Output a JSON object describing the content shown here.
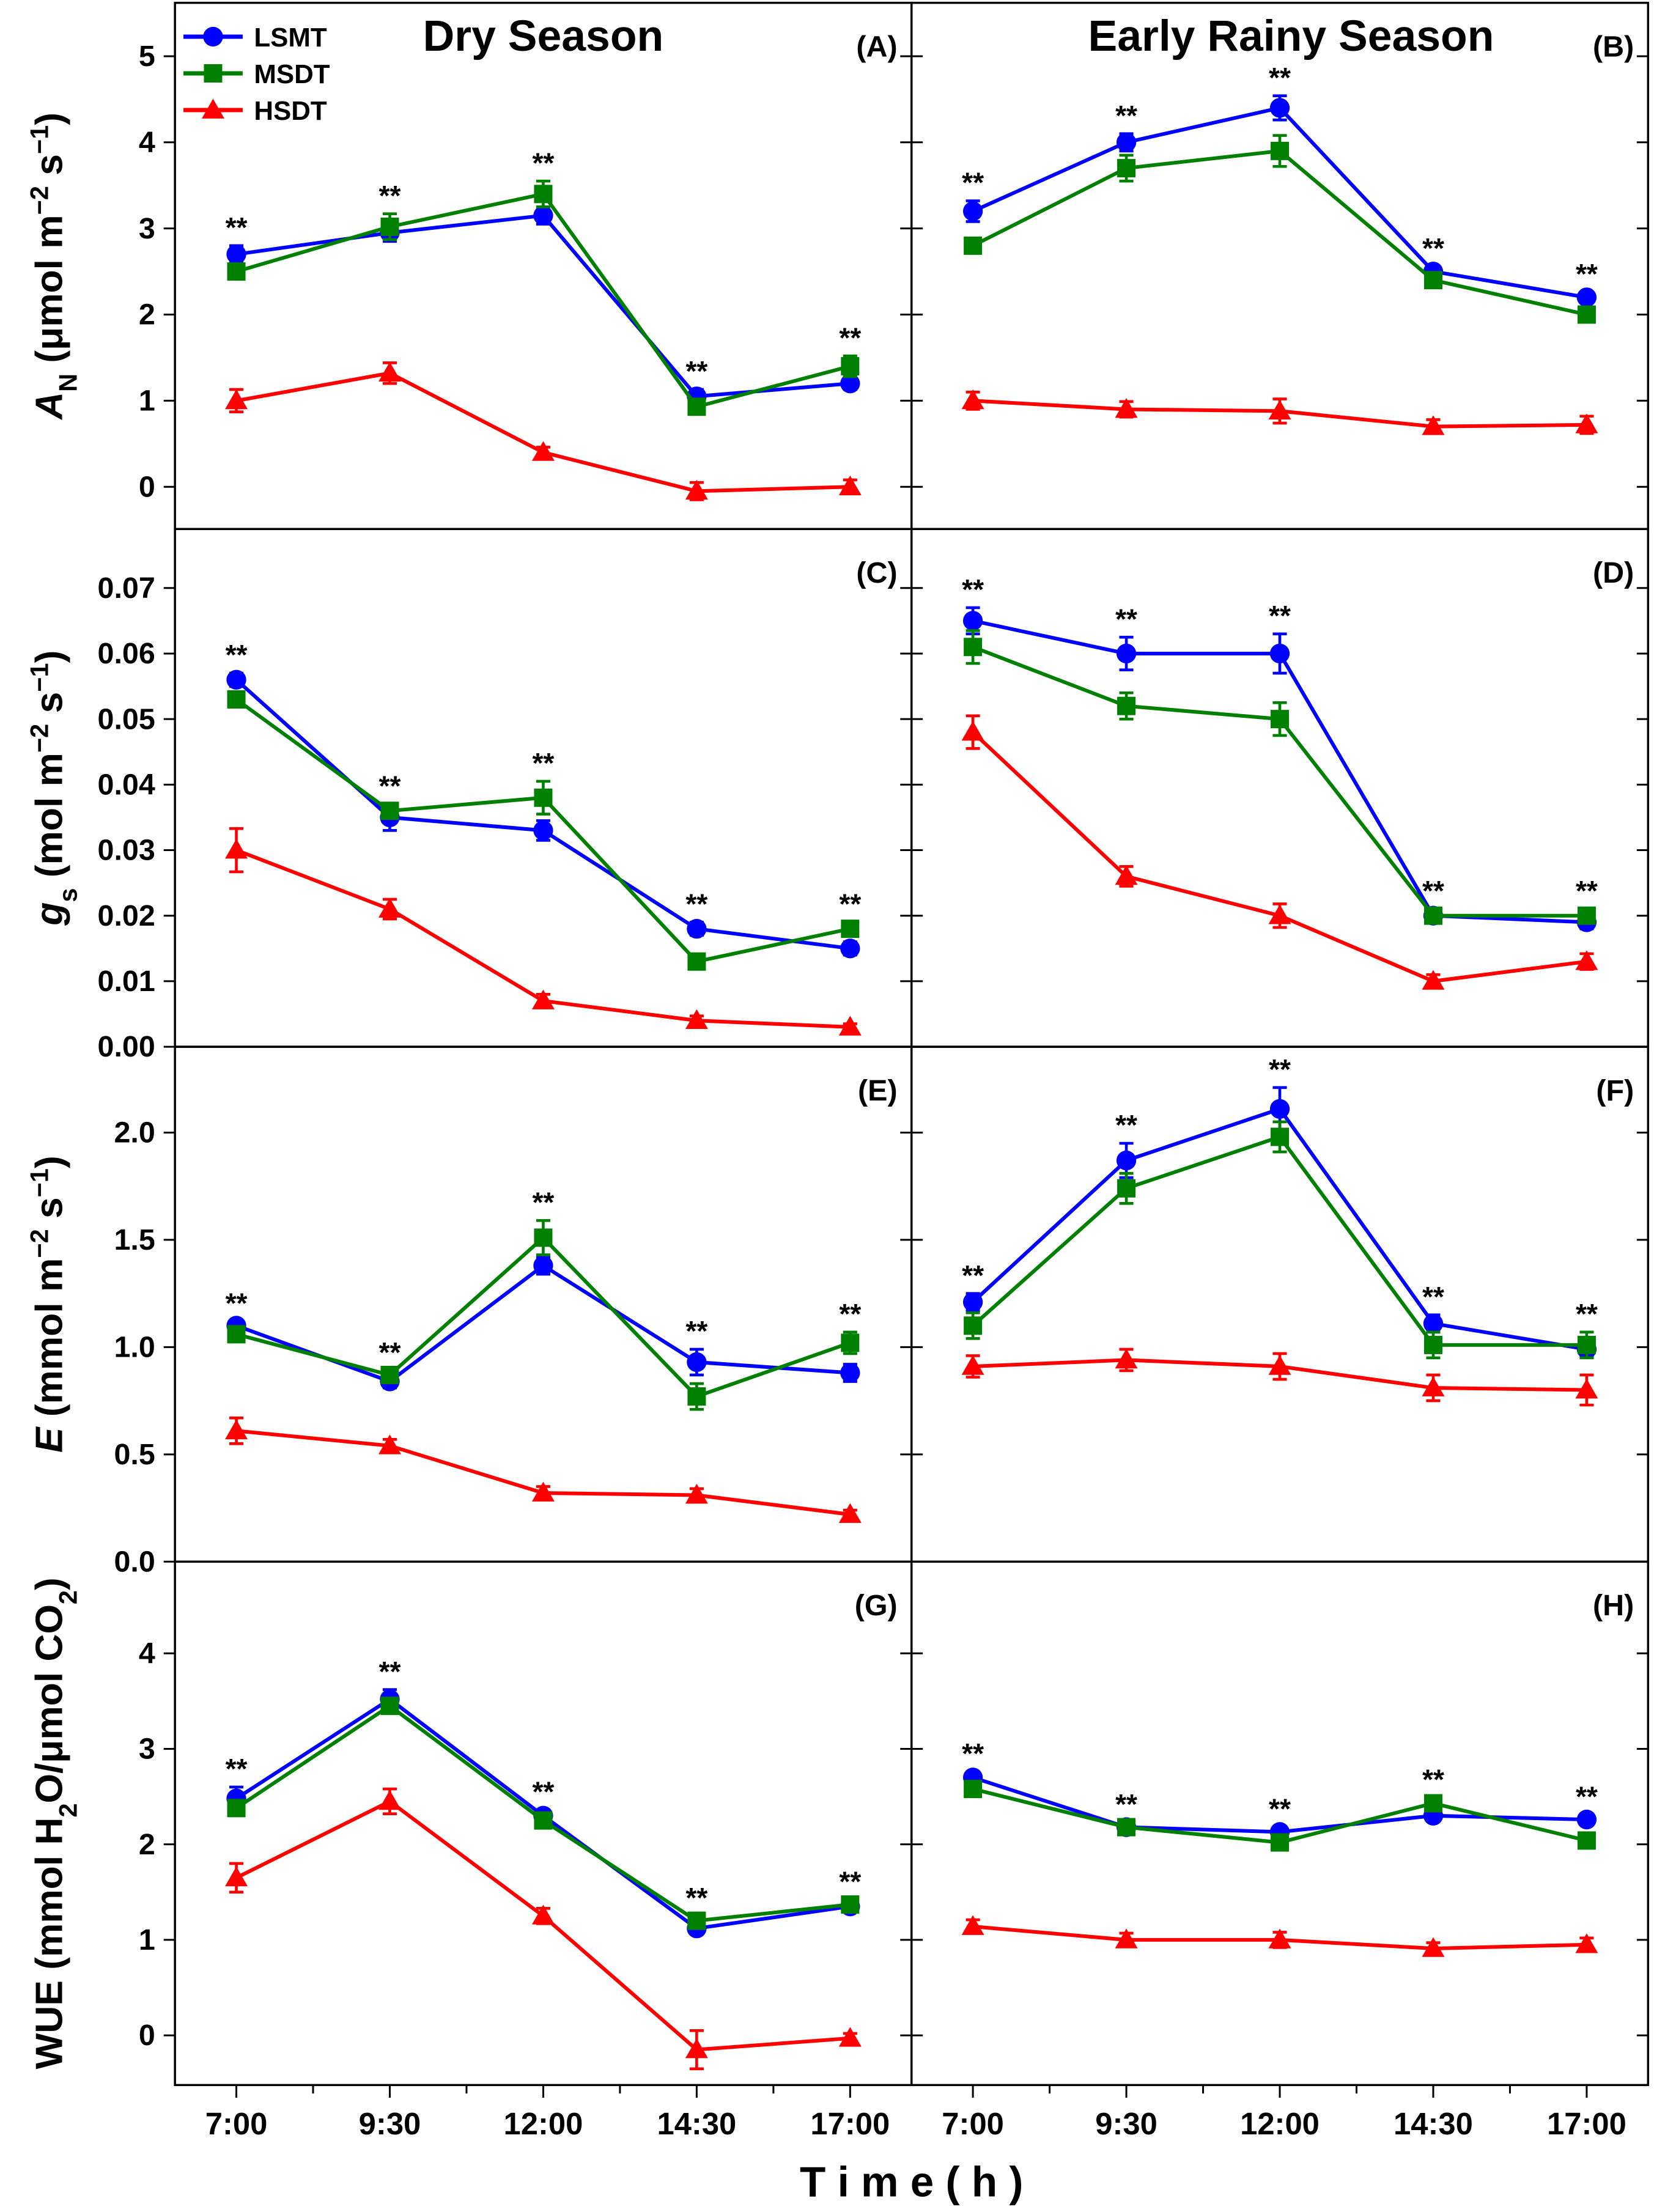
{
  "chart_data": {
    "type": "line",
    "xlabel": "T i m e  ( h )",
    "categories": [
      "7:00",
      "9:30",
      "12:00",
      "14:30",
      "17:00"
    ],
    "xlim": [
      -0.4,
      4.4
    ],
    "column_titles": [
      "Dry Season",
      "Early Rainy Season"
    ],
    "legend": {
      "placement": "top-left",
      "entries": [
        {
          "name": "LSMT",
          "color": "#0000ff",
          "marker": "circle"
        },
        {
          "name": "MSDT",
          "color": "#008000",
          "marker": "square"
        },
        {
          "name": "HSDT",
          "color": "#ff0000",
          "marker": "triangle"
        }
      ]
    },
    "significance_label": "**",
    "rows": [
      {
        "ylabel_parts": [
          {
            "t": "A",
            "s": "italic"
          },
          {
            "t": "N",
            "s": "sub"
          },
          {
            "t": " (μmol m",
            "s": "normal"
          },
          {
            "t": "−2",
            "s": "sup"
          },
          {
            "t": " s",
            "s": "normal"
          },
          {
            "t": "−1",
            "s": "sup"
          },
          {
            "t": ")",
            "s": "normal"
          }
        ],
        "ylim": [
          -0.49,
          5.62
        ],
        "yticks": [
          "0",
          "1",
          "2",
          "3",
          "4",
          "5"
        ]
      },
      {
        "ylabel_parts": [
          {
            "t": "g",
            "s": "italic"
          },
          {
            "t": "s",
            "s": "sub"
          },
          {
            "t": " (mol m",
            "s": "normal"
          },
          {
            "t": "−2",
            "s": "sup"
          },
          {
            "t": " s",
            "s": "normal"
          },
          {
            "t": "−1",
            "s": "sup"
          },
          {
            "t": ")",
            "s": "normal"
          }
        ],
        "ylim": [
          0,
          0.079
        ],
        "yticks": [
          "0.00",
          "0.01",
          "0.02",
          "0.03",
          "0.04",
          "0.05",
          "0.06",
          "0.07"
        ]
      },
      {
        "ylabel_parts": [
          {
            "t": "E",
            "s": "italic"
          },
          {
            "t": " (mmol m",
            "s": "normal"
          },
          {
            "t": "−2",
            "s": "sup"
          },
          {
            "t": " s",
            "s": "normal"
          },
          {
            "t": "−1",
            "s": "sup"
          },
          {
            "t": ")",
            "s": "normal"
          }
        ],
        "ylim": [
          0,
          2.4
        ],
        "yticks": [
          "0.0",
          "0.5",
          "1.0",
          "1.5",
          "2.0"
        ]
      },
      {
        "ylabel_parts": [
          {
            "t": "WUE (mmol H",
            "s": "normal"
          },
          {
            "t": "2",
            "s": "sub"
          },
          {
            "t": "O/μmol CO",
            "s": "normal"
          },
          {
            "t": "2",
            "s": "sub"
          },
          {
            "t": ")",
            "s": "normal"
          }
        ],
        "ylim": [
          -0.52,
          4.96
        ],
        "yticks": [
          "0",
          "1",
          "2",
          "3",
          "4"
        ]
      }
    ],
    "panels": [
      {
        "label": "(A)",
        "row": 0,
        "col": 0,
        "sig": [
          1,
          1,
          1,
          1,
          1
        ],
        "series": [
          {
            "name": "LSMT",
            "values": [
              2.7,
              2.95,
              3.15,
              1.05,
              1.2
            ],
            "err": [
              0.1,
              0.1,
              0.1,
              0.08,
              0.07
            ]
          },
          {
            "name": "MSDT",
            "values": [
              2.5,
              3.02,
              3.4,
              0.93,
              1.4
            ],
            "err": [
              0.08,
              0.15,
              0.15,
              0.08,
              0.12
            ]
          },
          {
            "name": "HSDT",
            "values": [
              1.0,
              1.32,
              0.4,
              -0.05,
              0.0
            ],
            "err": [
              0.13,
              0.12,
              0.06,
              0.1,
              0.08
            ]
          }
        ]
      },
      {
        "label": "(B)",
        "row": 0,
        "col": 1,
        "sig": [
          1,
          1,
          1,
          1,
          1
        ],
        "series": [
          {
            "name": "LSMT",
            "values": [
              3.2,
              4.0,
              4.4,
              2.5,
              2.2
            ],
            "err": [
              0.12,
              0.1,
              0.14,
              0.06,
              0.06
            ]
          },
          {
            "name": "MSDT",
            "values": [
              2.8,
              3.7,
              3.9,
              2.4,
              2.0
            ],
            "err": [
              0.06,
              0.15,
              0.18,
              0.08,
              0.06
            ]
          },
          {
            "name": "HSDT",
            "values": [
              1.0,
              0.9,
              0.88,
              0.7,
              0.72
            ],
            "err": [
              0.1,
              0.09,
              0.14,
              0.08,
              0.1
            ]
          }
        ]
      },
      {
        "label": "(C)",
        "row": 1,
        "col": 0,
        "sig": [
          1,
          1,
          1,
          1,
          1
        ],
        "series": [
          {
            "name": "LSMT",
            "values": [
              0.056,
              0.035,
              0.033,
              0.018,
              0.015
            ],
            "err": [
              0.001,
              0.002,
              0.0015,
              0.001,
              0.001
            ]
          },
          {
            "name": "MSDT",
            "values": [
              0.053,
              0.036,
              0.038,
              0.013,
              0.018
            ],
            "err": [
              0.001,
              0.001,
              0.0025,
              0.001,
              0.001
            ]
          },
          {
            "name": "HSDT",
            "values": [
              0.03,
              0.021,
              0.007,
              0.004,
              0.003
            ],
            "err": [
              0.0033,
              0.0015,
              0.001,
              0.0007,
              0.0005
            ]
          }
        ]
      },
      {
        "label": "(D)",
        "row": 1,
        "col": 1,
        "sig": [
          1,
          1,
          1,
          1,
          1
        ],
        "series": [
          {
            "name": "LSMT",
            "values": [
              0.065,
              0.06,
              0.06,
              0.02,
              0.019
            ],
            "err": [
              0.002,
              0.0025,
              0.003,
              0.001,
              0.001
            ]
          },
          {
            "name": "MSDT",
            "values": [
              0.061,
              0.052,
              0.05,
              0.02,
              0.02
            ],
            "err": [
              0.0025,
              0.002,
              0.0025,
              0.001,
              0.001
            ]
          },
          {
            "name": "HSDT",
            "values": [
              0.048,
              0.026,
              0.02,
              0.01,
              0.013
            ],
            "err": [
              0.0025,
              0.0015,
              0.0018,
              0.001,
              0.0012
            ]
          }
        ]
      },
      {
        "label": "(E)",
        "row": 2,
        "col": 0,
        "sig": [
          1,
          1,
          1,
          1,
          1
        ],
        "series": [
          {
            "name": "LSMT",
            "values": [
              1.1,
              0.84,
              1.38,
              0.93,
              0.88
            ],
            "err": [
              0.02,
              0.03,
              0.04,
              0.06,
              0.04
            ]
          },
          {
            "name": "MSDT",
            "values": [
              1.06,
              0.87,
              1.51,
              0.77,
              1.02
            ],
            "err": [
              0.02,
              0.02,
              0.08,
              0.06,
              0.05
            ]
          },
          {
            "name": "HSDT",
            "values": [
              0.61,
              0.54,
              0.32,
              0.31,
              0.22
            ],
            "err": [
              0.06,
              0.03,
              0.03,
              0.03,
              0.02
            ]
          }
        ]
      },
      {
        "label": "(F)",
        "row": 2,
        "col": 1,
        "sig": [
          1,
          1,
          1,
          1,
          1
        ],
        "series": [
          {
            "name": "LSMT",
            "values": [
              1.21,
              1.87,
              2.11,
              1.11,
              0.99
            ],
            "err": [
              0.04,
              0.08,
              0.1,
              0.04,
              0.03
            ]
          },
          {
            "name": "MSDT",
            "values": [
              1.1,
              1.74,
              1.98,
              1.01,
              1.01
            ],
            "err": [
              0.06,
              0.07,
              0.07,
              0.06,
              0.06
            ]
          },
          {
            "name": "HSDT",
            "values": [
              0.91,
              0.94,
              0.91,
              0.81,
              0.8
            ],
            "err": [
              0.05,
              0.05,
              0.06,
              0.06,
              0.07
            ]
          }
        ]
      },
      {
        "label": "(G)",
        "row": 3,
        "col": 0,
        "sig": [
          1,
          1,
          1,
          1,
          1
        ],
        "series": [
          {
            "name": "LSMT",
            "values": [
              2.48,
              3.52,
              2.3,
              1.12,
              1.35
            ],
            "err": [
              0.12,
              0.1,
              0.06,
              0.06,
              0.06
            ]
          },
          {
            "name": "MSDT",
            "values": [
              2.38,
              3.45,
              2.25,
              1.2,
              1.37
            ],
            "err": [
              0.08,
              0.08,
              0.06,
              0.05,
              0.05
            ]
          },
          {
            "name": "HSDT",
            "values": [
              1.65,
              2.45,
              1.25,
              -0.15,
              -0.03
            ],
            "err": [
              0.15,
              0.13,
              0.08,
              0.2,
              0.05
            ]
          }
        ]
      },
      {
        "label": "(H)",
        "row": 3,
        "col": 1,
        "sig": [
          1,
          1,
          1,
          1,
          1
        ],
        "series": [
          {
            "name": "LSMT",
            "values": [
              2.7,
              2.18,
              2.13,
              2.3,
              2.26
            ],
            "err": [
              0.06,
              0.05,
              0.05,
              0.05,
              0.05
            ]
          },
          {
            "name": "MSDT",
            "values": [
              2.58,
              2.18,
              2.02,
              2.43,
              2.04
            ],
            "err": [
              0.05,
              0.05,
              0.05,
              0.06,
              0.05
            ]
          },
          {
            "name": "HSDT",
            "values": [
              1.14,
              1.0,
              1.0,
              0.91,
              0.95
            ],
            "err": [
              0.07,
              0.07,
              0.08,
              0.06,
              0.07
            ]
          }
        ]
      }
    ]
  }
}
